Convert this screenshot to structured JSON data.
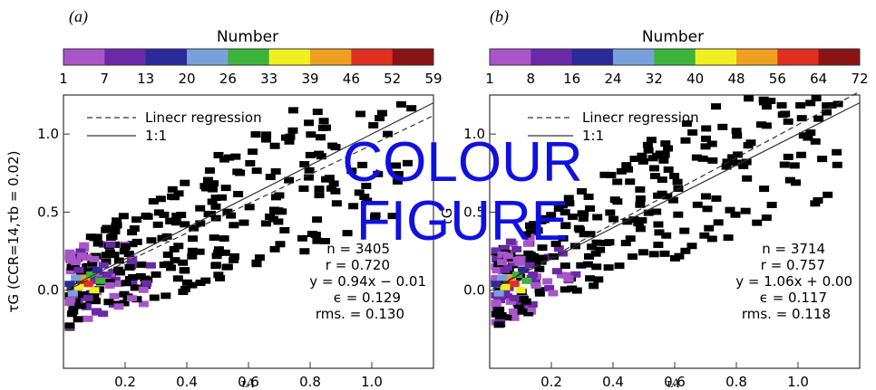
{
  "overlay": {
    "line1": "COLOUR",
    "line2": "FIGURE",
    "color": "#1010e0"
  },
  "colorbar_palette": [
    "#a855c8",
    "#6a2aa8",
    "#2a2a9a",
    "#7aa0dc",
    "#3cb43c",
    "#f0f020",
    "#f0a020",
    "#e03020",
    "#8a1414"
  ],
  "legend": {
    "dashed": "Linecr regression",
    "solid": "1:1"
  },
  "panels": [
    {
      "label": "(a)",
      "colorbar_title": "Number",
      "colorbar_ticks": [
        "1",
        "7",
        "13",
        "20",
        "26",
        "33",
        "39",
        "46",
        "52",
        "59"
      ],
      "ylabel": "τG (CCR=14,τb = 0.02)",
      "xlabel": "τA",
      "stats": [
        "n = 3405",
        "r =  0.720",
        "y =  0.94x − 0.01",
        "ϵ = 0.129",
        "rms. = 0.130"
      ]
    },
    {
      "label": "(b)",
      "colorbar_title": "Number",
      "colorbar_ticks": [
        "1",
        "8",
        "16",
        "24",
        "32",
        "40",
        "48",
        "56",
        "64",
        "72"
      ],
      "ylabel": "τG",
      "xlabel": "τA",
      "stats": [
        "n = 3714",
        "r =  0.757",
        "y =  1.06x + 0.00",
        "ϵ = 0.117",
        "rms. = 0.118"
      ]
    }
  ],
  "chart_data": [
    {
      "type": "heatmap",
      "title": "",
      "xlabel": "τA",
      "ylabel": "τG (CCR=14,τb = 0.02)",
      "xlim": [
        0.0,
        1.2
      ],
      "ylim": [
        -0.5,
        1.25
      ],
      "xticks": [
        "0.2",
        "0.4",
        "0.6",
        "0.8",
        "1.0"
      ],
      "yticks": [
        "0.0",
        "0.5",
        "1.0"
      ],
      "colorbar": {
        "title": "Number",
        "ticks": [
          1,
          7,
          13,
          20,
          26,
          33,
          39,
          46,
          52,
          59
        ]
      },
      "lines": [
        {
          "name": "Linecr regression",
          "style": "dashed",
          "slope": 0.94,
          "intercept": -0.01
        },
        {
          "name": "1:1",
          "style": "solid",
          "slope": 1.0,
          "intercept": 0.0
        }
      ],
      "stats": {
        "n": 3405,
        "r": 0.72,
        "slope": 0.94,
        "intercept": -0.01,
        "epsilon": 0.129,
        "rms": 0.13
      }
    },
    {
      "type": "heatmap",
      "title": "",
      "xlabel": "τA",
      "ylabel": "τG",
      "xlim": [
        0.0,
        1.2
      ],
      "ylim": [
        -0.5,
        1.25
      ],
      "xticks": [
        "0.2",
        "0.4",
        "0.6",
        "0.8",
        "1.0"
      ],
      "yticks": [
        "0.0",
        "0.5",
        "1.0"
      ],
      "colorbar": {
        "title": "Number",
        "ticks": [
          1,
          8,
          16,
          24,
          32,
          40,
          48,
          56,
          64,
          72
        ]
      },
      "lines": [
        {
          "name": "Linecr regression",
          "style": "dashed",
          "slope": 1.06,
          "intercept": 0.0
        },
        {
          "name": "1:1",
          "style": "solid",
          "slope": 1.0,
          "intercept": 0.0
        }
      ],
      "stats": {
        "n": 3714,
        "r": 0.757,
        "slope": 1.06,
        "intercept": 0.0,
        "epsilon": 0.117,
        "rms": 0.118
      }
    }
  ]
}
